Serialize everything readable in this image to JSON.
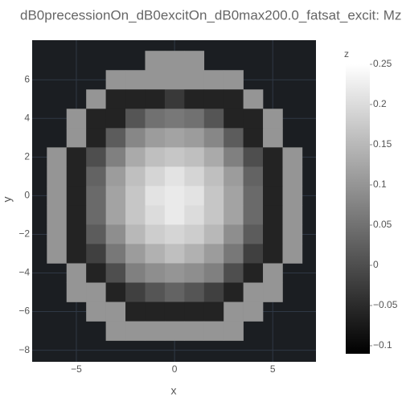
{
  "chart_data": {
    "type": "heatmap",
    "title": "dB0precessionOn_dB0excitOn_dB0max200.0_fatsat_excit: Mz",
    "x_label": "x",
    "y_label": "y",
    "colorbar_title": "z",
    "xlim": [
      -7.25,
      7.2
    ],
    "ylim": [
      -8.6,
      8.05
    ],
    "xticks": [
      {
        "value": -5,
        "label": "−5"
      },
      0,
      5
    ],
    "yticks": [
      6,
      4,
      2,
      0,
      {
        "value": -2,
        "label": "−2"
      },
      {
        "value": -4,
        "label": "−4"
      },
      {
        "value": -6,
        "label": "−6"
      },
      {
        "value": -8,
        "label": "−8"
      }
    ],
    "zlim": [
      -0.11,
      0.25
    ],
    "zticks": [
      {
        "value": -0.1,
        "label": "−0.1"
      },
      {
        "value": -0.05,
        "label": "−0.05"
      },
      0,
      0.05,
      0.1,
      0.15,
      0.2,
      0.25
    ],
    "colorscale": [
      "#000000",
      "#ffffff"
    ],
    "grid": true,
    "x": [
      -7,
      -6,
      -5,
      -4,
      -3,
      -2,
      -1,
      0,
      1,
      2,
      3,
      4,
      5,
      6,
      7
    ],
    "y": [
      8,
      7,
      6,
      5,
      4,
      3,
      2,
      1,
      0,
      -1,
      -2,
      -3,
      -4,
      -5,
      -6,
      -7,
      -8
    ],
    "z": [
      [
        null,
        null,
        null,
        null,
        null,
        null,
        null,
        null,
        null,
        null,
        null,
        null,
        null,
        null,
        null
      ],
      [
        null,
        null,
        null,
        null,
        null,
        null,
        0.1,
        0.1,
        0.1,
        null,
        null,
        null,
        null,
        null,
        null
      ],
      [
        null,
        null,
        null,
        null,
        0.1,
        0.1,
        0.1,
        0.1,
        0.1,
        0.1,
        0.1,
        null,
        null,
        null,
        null
      ],
      [
        null,
        null,
        null,
        0.1,
        -0.06,
        -0.06,
        -0.06,
        -0.03,
        -0.06,
        -0.06,
        -0.06,
        0.1,
        null,
        null,
        null
      ],
      [
        null,
        null,
        0.1,
        -0.06,
        -0.06,
        0.01,
        0.05,
        0.06,
        0.05,
        0.01,
        -0.06,
        -0.06,
        0.1,
        null,
        null
      ],
      [
        null,
        null,
        0.1,
        -0.06,
        0.02,
        0.08,
        0.11,
        0.12,
        0.11,
        0.08,
        0.02,
        -0.06,
        0.1,
        null,
        null
      ],
      [
        null,
        0.1,
        -0.06,
        0,
        0.07,
        0.13,
        0.16,
        0.17,
        0.16,
        0.13,
        0.07,
        0,
        -0.06,
        0.1,
        null
      ],
      [
        null,
        0.1,
        -0.06,
        0.03,
        0.11,
        0.16,
        0.19,
        0.21,
        0.19,
        0.16,
        0.11,
        0.03,
        -0.06,
        0.1,
        null
      ],
      [
        null,
        0.1,
        -0.06,
        0.04,
        0.12,
        0.17,
        0.21,
        0.22,
        0.21,
        0.17,
        0.12,
        0.04,
        -0.06,
        0.1,
        null
      ],
      [
        null,
        0.1,
        -0.06,
        0.04,
        0.12,
        0.17,
        0.2,
        0.22,
        0.2,
        0.17,
        0.12,
        0.04,
        -0.06,
        0.1,
        null
      ],
      [
        null,
        0.1,
        -0.06,
        0.02,
        0.09,
        0.15,
        0.18,
        0.19,
        0.18,
        0.15,
        0.09,
        0.02,
        -0.06,
        0.1,
        null
      ],
      [
        null,
        0.1,
        -0.06,
        -0.02,
        0.06,
        0.11,
        0.14,
        0.16,
        0.14,
        0.11,
        0.06,
        -0.02,
        -0.06,
        0.1,
        null
      ],
      [
        null,
        null,
        0.1,
        -0.06,
        0,
        0.07,
        0.09,
        0.1,
        0.09,
        0.07,
        0,
        -0.06,
        0.1,
        null,
        null
      ],
      [
        null,
        null,
        0.1,
        0.1,
        -0.06,
        -0.02,
        0.01,
        0.03,
        0.01,
        -0.02,
        -0.06,
        0.1,
        0.1,
        null,
        null
      ],
      [
        null,
        null,
        null,
        0.1,
        0.1,
        -0.06,
        -0.06,
        -0.06,
        -0.06,
        -0.06,
        0.1,
        0.1,
        null,
        null,
        null
      ],
      [
        null,
        null,
        null,
        null,
        0.1,
        0.1,
        0.1,
        0.1,
        0.1,
        0.1,
        0.1,
        null,
        null,
        null,
        null
      ],
      [
        null,
        null,
        null,
        null,
        null,
        null,
        null,
        null,
        null,
        null,
        null,
        null,
        null,
        null,
        null
      ]
    ]
  }
}
